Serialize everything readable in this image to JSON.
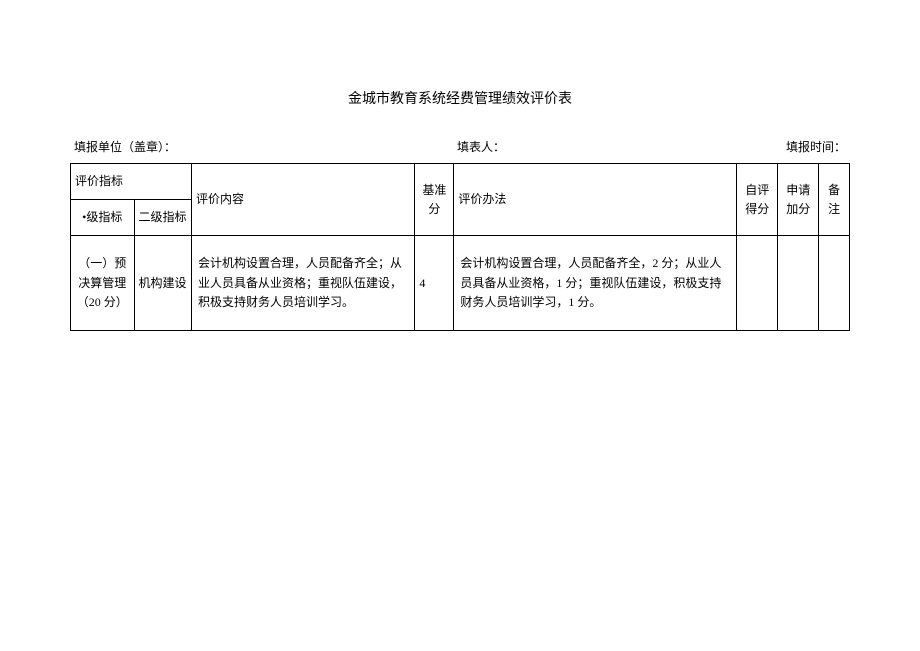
{
  "title": "金城市教育系统经费管理绩效评价表",
  "meta": {
    "unit_label": "填报单位（盖章）：",
    "filler_label": "填表人：",
    "time_label": "填报时间："
  },
  "headers": {
    "eval_indicator": "评价指标",
    "level1": "•级指标",
    "level2": "二级指标",
    "content": "评价内容",
    "base_score": "基准分",
    "method": "评价办法",
    "self_score": "自评得分",
    "bonus": "申请加分",
    "note": "备注"
  },
  "rows": [
    {
      "level1": "（一）预决算管理（20 分）",
      "level2": "机构建设",
      "content": "会计机构设置合理，人员配备齐全；从业人员具备从业资格；重视队伍建设，积极支持财务人员培训学习。",
      "base_score": "4",
      "method": "会计机构设置合理，人员配备齐全，2 分；从业人员具备从业资格，1 分；重视队伍建设，积极支持财务人员培训学习，1 分。",
      "self_score": "",
      "bonus": "",
      "note": ""
    }
  ]
}
